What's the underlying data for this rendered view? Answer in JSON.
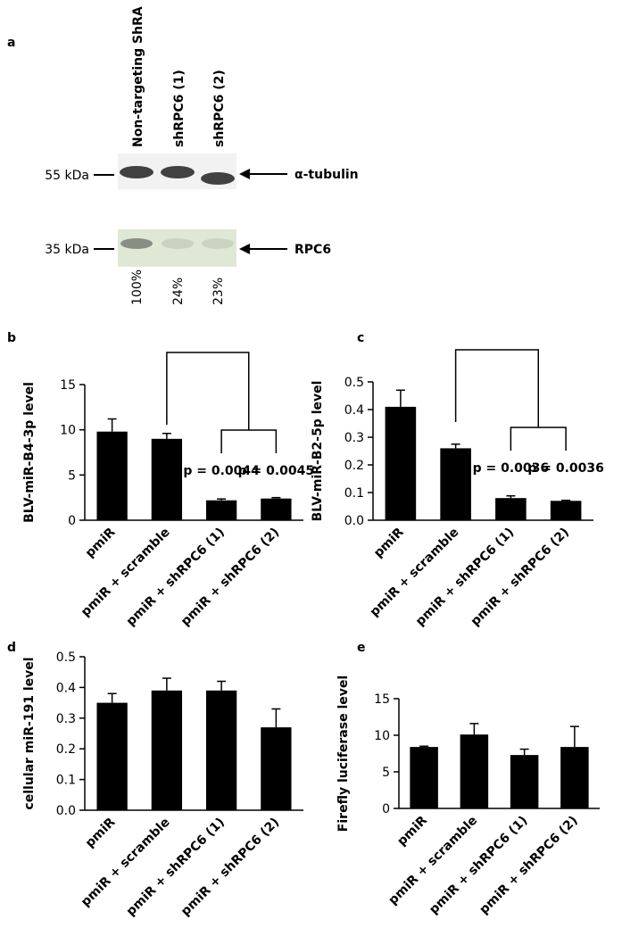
{
  "blot": {
    "label": "a",
    "lanes": [
      "Non-targeting ShRA",
      "shRPC6 (1)",
      "shRPC6 (2)"
    ],
    "markers": [
      "55 kDa",
      "35 kDa"
    ],
    "proteins": [
      "α-tubulin",
      "RPC6"
    ],
    "quantification": {
      "values": [
        100,
        24,
        23
      ],
      "value_labels": [
        "100%",
        "24%",
        "23%"
      ]
    }
  },
  "chart_data": [
    {
      "type": "bar",
      "label": "b",
      "ylabel": "BLV-miR-B4-3p level",
      "categories": [
        "pmiR",
        "pmiR + scramble",
        "pmiR + shRPC6 (1)",
        "pmiR + shRPC6 (2)"
      ],
      "values": [
        9.8,
        9.0,
        2.2,
        2.4
      ],
      "errors": [
        1.4,
        0.6,
        0.15,
        0.1
      ],
      "color": "#000000",
      "ylim": [
        0,
        15
      ],
      "yticks": [
        0,
        5,
        10,
        15
      ],
      "annotations": [
        "p = 0.0044",
        "p = 0.0045"
      ]
    },
    {
      "type": "bar",
      "label": "c",
      "ylabel": "BLV-miR-B2-5p level",
      "categories": [
        "pmiR",
        "pmiR + scramble",
        "pmiR + shRPC6 (1)",
        "pmiR + shRPC6 (2)"
      ],
      "values": [
        0.41,
        0.26,
        0.08,
        0.07
      ],
      "errors": [
        0.06,
        0.015,
        0.008,
        0.002
      ],
      "color": "#000000",
      "ylim": [
        0,
        0.5
      ],
      "yticks": [
        {
          "value": 0,
          "label": "0.0"
        },
        0.1,
        0.2,
        0.3,
        0.4,
        0.5
      ],
      "annotations": [
        "p = 0.0036",
        "p = 0.0036"
      ]
    },
    {
      "type": "bar",
      "label": "d",
      "ylabel": "cellular miR-191 level",
      "categories": [
        "pmiR",
        "pmiR + scramble",
        "pmiR + shRPC6 (1)",
        "pmiR + shRPC6 (2)"
      ],
      "values": [
        0.35,
        0.39,
        0.39,
        0.27
      ],
      "errors": [
        0.03,
        0.04,
        0.03,
        0.06
      ],
      "color": "#000000",
      "ylim": [
        0,
        0.5
      ],
      "yticks": [
        {
          "value": 0,
          "label": "0.0"
        },
        0.1,
        0.2,
        0.3,
        0.4,
        0.5
      ]
    },
    {
      "type": "bar",
      "label": "e",
      "ylabel": "Firefly luciferase level",
      "categories": [
        "pmiR",
        "pmiR + scramble",
        "pmiR + shRPC6 (1)",
        "pmiR + shRPC6 (2)"
      ],
      "values": [
        8.4,
        10.1,
        7.3,
        8.4
      ],
      "errors": [
        0.1,
        1.5,
        0.8,
        2.8
      ],
      "color": "#000000",
      "ylim": [
        0,
        15
      ],
      "yticks": [
        0,
        5,
        10,
        15
      ]
    }
  ]
}
